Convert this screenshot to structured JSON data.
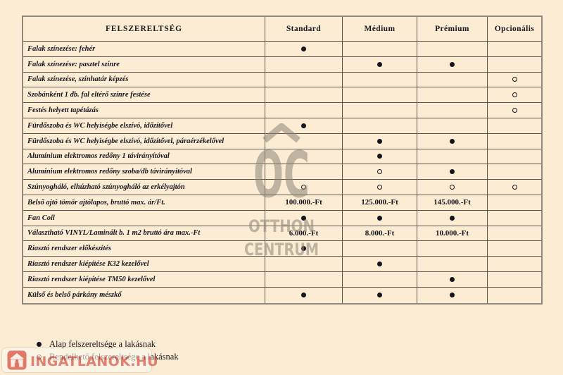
{
  "colors": {
    "background": "#fbecd3",
    "grid_line": "#5a544c",
    "outer_border": "#8e887f",
    "text": "#15151d",
    "watermark_gray": "#8d8678",
    "logo_red": "#d64a3e"
  },
  "table": {
    "header": {
      "feature": "FELSZERELTSÉG",
      "columns": [
        "Standard",
        "Médium",
        "Prémium",
        "Opcionális"
      ]
    },
    "rows": [
      {
        "label": "Falak színezése: fehér",
        "cells": [
          "filled",
          "",
          "",
          ""
        ]
      },
      {
        "label": "Falak színezése: pasztel színre",
        "cells": [
          "",
          "filled",
          "filled",
          ""
        ]
      },
      {
        "label": "Falak színezése, színhatár képzés",
        "cells": [
          "",
          "",
          "",
          "open"
        ]
      },
      {
        "label": "Szobánként 1 db. fal eltérő színre festése",
        "cells": [
          "",
          "",
          "",
          "open"
        ]
      },
      {
        "label": "Festés helyett tapétázás",
        "cells": [
          "",
          "",
          "",
          "open"
        ]
      },
      {
        "label": "Fürdőszoba és WC helyiségbe elszívó, időzítővel",
        "cells": [
          "filled",
          "",
          "",
          ""
        ]
      },
      {
        "label": "Fürdőszoba és WC helyiségbe elszívó, időzítővel, páraérzékelővel",
        "cells": [
          "",
          "filled",
          "filled",
          ""
        ]
      },
      {
        "label": "Alumínium elektromos redőny 1 távirányítóval",
        "cells": [
          "",
          "filled",
          "",
          ""
        ]
      },
      {
        "label": "Alumínium elektromos redőny szoba/db távirányítóval",
        "cells": [
          "",
          "open",
          "filled",
          ""
        ]
      },
      {
        "label": "Szúnyogháló, elhúzható szúnyogháló az erkélyajtón",
        "cells": [
          "open",
          "open",
          "open",
          "open"
        ]
      },
      {
        "label": "Belső ajtó tömör ajtólapos, bruttó max. ár/Ft.",
        "cells": [
          "100.000.-Ft",
          "125.000.-Ft",
          "145.000.-Ft",
          ""
        ]
      },
      {
        "label": "Fan Coil",
        "cells": [
          "filled",
          "filled",
          "filled",
          ""
        ]
      },
      {
        "label": "Választható VINYL/Laminált b. 1 m2 bruttó ára max.-Ft",
        "cells": [
          "6.000.-Ft",
          "8.000.-Ft",
          "10.000.-Ft",
          ""
        ]
      },
      {
        "label": "Riasztó rendszer előkészítés",
        "cells": [
          "filled",
          "",
          "",
          ""
        ]
      },
      {
        "label": "Riasztó rendszer kiépítése K32 kezelővel",
        "cells": [
          "",
          "filled",
          "",
          ""
        ]
      },
      {
        "label": "Riasztó rendszer kiépítése TM50 kezelővel",
        "cells": [
          "",
          "",
          "filled",
          ""
        ]
      },
      {
        "label": "Külső és belső párkány mészkő",
        "cells": [
          "filled",
          "filled",
          "filled",
          ""
        ]
      }
    ]
  },
  "legend": [
    {
      "marker": "filled",
      "label": "Alap felszereltsége a lakásnak"
    },
    {
      "marker": "open",
      "label": "Rendelhető felszereltsége a lakásnak"
    }
  ],
  "watermark": {
    "monogram": "OC",
    "name_line1": "OTTHON",
    "name_line2": "CENTRUM"
  },
  "logo": {
    "text": "INGATLANOK.HU",
    "house_icon": "house-icon"
  }
}
